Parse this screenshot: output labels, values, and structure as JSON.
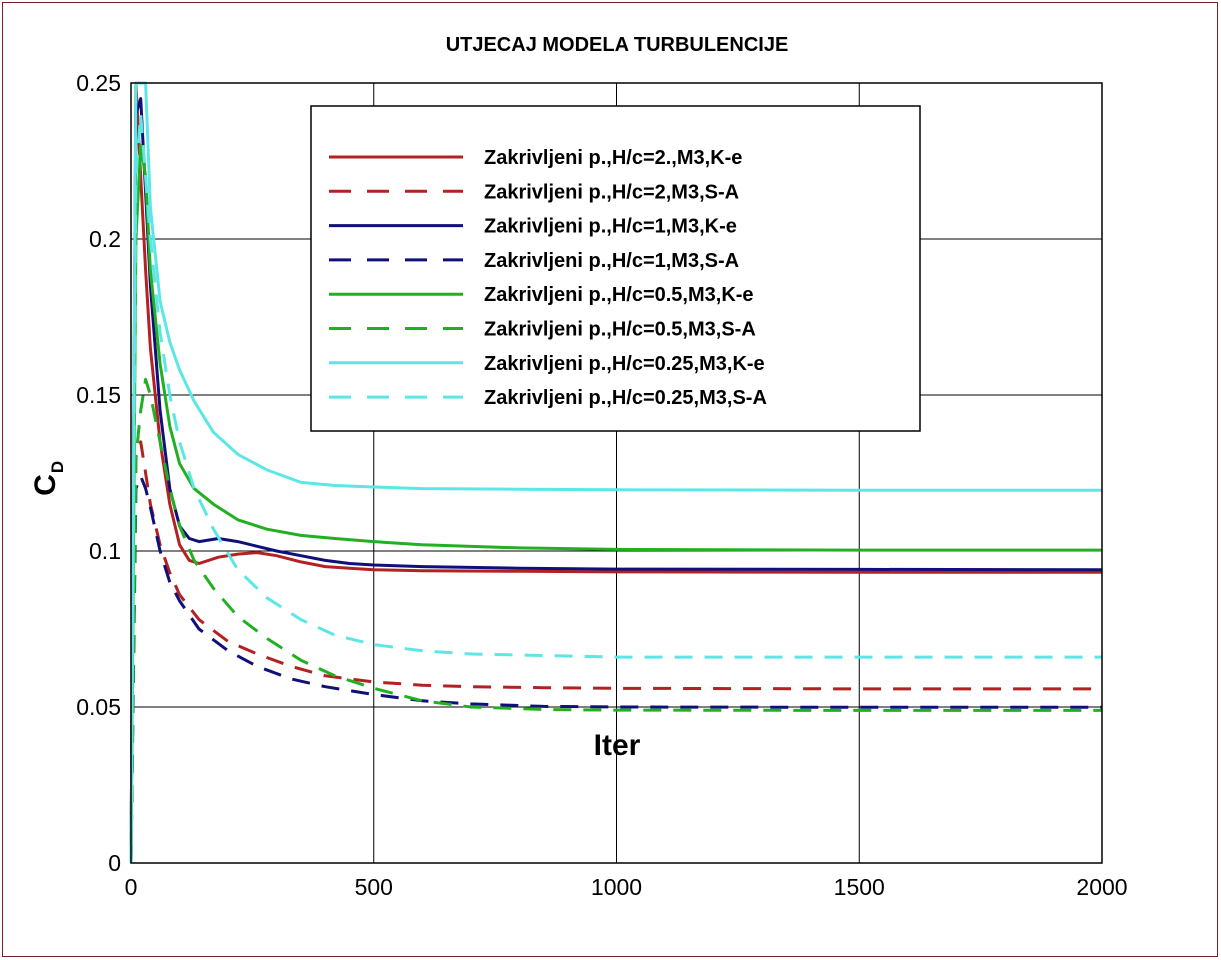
{
  "chart_data": {
    "type": "line",
    "title": "UTJECAJ MODELA TURBULENCIJE",
    "xlabel": "Iter",
    "ylabel": "C",
    "ylabel_sub": "D",
    "xlim": [
      0,
      2000
    ],
    "ylim": [
      0,
      0.25
    ],
    "xticks": [
      0,
      500,
      1000,
      1500,
      2000
    ],
    "xtick_labels": [
      "0",
      "500",
      "1000",
      "1500",
      "2000"
    ],
    "yticks": [
      0,
      0.05,
      0.1,
      0.15,
      0.2,
      0.25
    ],
    "ytick_labels": [
      "0",
      "0.05",
      "0.1",
      "0.15",
      "0.2",
      "0.25"
    ],
    "grid": true,
    "legend_position": "top-center",
    "series": [
      {
        "name": "Zakrivljeni p.,H/c=2.,M3,K-e",
        "color": "#b22222",
        "dash": "solid",
        "x": [
          0,
          10,
          20,
          30,
          40,
          60,
          80,
          100,
          120,
          140,
          180,
          220,
          260,
          300,
          350,
          400,
          450,
          500,
          600,
          800,
          1000,
          1500,
          2000
        ],
        "y": [
          0,
          0.25,
          0.22,
          0.19,
          0.165,
          0.135,
          0.115,
          0.102,
          0.097,
          0.096,
          0.098,
          0.099,
          0.0995,
          0.0985,
          0.0965,
          0.095,
          0.0945,
          0.094,
          0.0937,
          0.0935,
          0.0933,
          0.0932,
          0.0932
        ]
      },
      {
        "name": "Zakrivljeni p.,H/c=2,M3,S-A",
        "color": "#b22222",
        "dash": "dashed",
        "x": [
          0,
          10,
          20,
          30,
          40,
          60,
          80,
          100,
          140,
          200,
          260,
          330,
          400,
          500,
          600,
          700,
          850,
          1000,
          1500,
          2000
        ],
        "y": [
          0,
          0.13,
          0.135,
          0.125,
          0.115,
          0.102,
          0.093,
          0.086,
          0.078,
          0.071,
          0.067,
          0.063,
          0.06,
          0.058,
          0.057,
          0.0565,
          0.0562,
          0.056,
          0.0558,
          0.0558
        ]
      },
      {
        "name": "Zakrivljeni p.,H/c=1,M3,K-e",
        "color": "#10107a",
        "dash": "solid",
        "x": [
          0,
          10,
          20,
          30,
          40,
          60,
          80,
          100,
          120,
          140,
          180,
          220,
          260,
          300,
          350,
          400,
          450,
          500,
          600,
          800,
          1000,
          1500,
          2000
        ],
        "y": [
          0,
          0.24,
          0.245,
          0.215,
          0.185,
          0.145,
          0.12,
          0.108,
          0.104,
          0.103,
          0.104,
          0.103,
          0.1015,
          0.1,
          0.0985,
          0.097,
          0.096,
          0.0955,
          0.095,
          0.0945,
          0.0942,
          0.0941,
          0.094
        ]
      },
      {
        "name": "Zakrivljeni p.,H/c=1,M3,S-A",
        "color": "#10107a",
        "dash": "dashed",
        "x": [
          0,
          10,
          20,
          30,
          40,
          60,
          80,
          100,
          140,
          200,
          260,
          330,
          400,
          500,
          600,
          700,
          850,
          1000,
          1500,
          2000
        ],
        "y": [
          0,
          0.12,
          0.124,
          0.12,
          0.114,
          0.1,
          0.09,
          0.084,
          0.075,
          0.068,
          0.063,
          0.059,
          0.0565,
          0.054,
          0.052,
          0.051,
          0.0502,
          0.05,
          0.0499,
          0.0499
        ]
      },
      {
        "name": "Zakrivljeni p.,H/c=0.5,M3,K-e",
        "color": "#22b022",
        "dash": "solid",
        "x": [
          0,
          10,
          20,
          30,
          40,
          60,
          80,
          100,
          130,
          170,
          220,
          280,
          350,
          420,
          500,
          600,
          800,
          1000,
          1500,
          2000
        ],
        "y": [
          0,
          0.2,
          0.23,
          0.22,
          0.19,
          0.16,
          0.14,
          0.128,
          0.12,
          0.115,
          0.11,
          0.107,
          0.105,
          0.104,
          0.103,
          0.102,
          0.101,
          0.1005,
          0.1003,
          0.1003
        ]
      },
      {
        "name": "Zakrivljeni p.,H/c=0.5,M3,S-A",
        "color": "#22b022",
        "dash": "dashed",
        "x": [
          0,
          10,
          20,
          30,
          40,
          60,
          80,
          100,
          130,
          170,
          220,
          280,
          350,
          420,
          500,
          600,
          700,
          850,
          1000,
          1500,
          2000
        ],
        "y": [
          0,
          0.13,
          0.145,
          0.155,
          0.15,
          0.135,
          0.12,
          0.108,
          0.097,
          0.088,
          0.079,
          0.072,
          0.065,
          0.06,
          0.056,
          0.052,
          0.05,
          0.0492,
          0.049,
          0.0489,
          0.0489
        ]
      },
      {
        "name": "Zakrivljeni p.,H/c=0.25,M3,K-e",
        "color": "#5ce6e6",
        "dash": "solid",
        "x": [
          0,
          10,
          20,
          30,
          40,
          60,
          80,
          100,
          130,
          170,
          220,
          280,
          350,
          420,
          500,
          600,
          800,
          1000,
          1500,
          2000
        ],
        "y": [
          0,
          0.25,
          0.25,
          0.25,
          0.21,
          0.18,
          0.167,
          0.158,
          0.148,
          0.138,
          0.131,
          0.126,
          0.122,
          0.121,
          0.1205,
          0.12,
          0.1198,
          0.1196,
          0.1195,
          0.1195
        ]
      },
      {
        "name": "Zakrivljeni p.,H/c=0.25,M3,S-A",
        "color": "#5ce6e6",
        "dash": "dashed",
        "x": [
          0,
          10,
          20,
          30,
          40,
          60,
          80,
          100,
          130,
          170,
          220,
          280,
          350,
          420,
          500,
          600,
          700,
          850,
          1000,
          1500,
          2000
        ],
        "y": [
          0,
          0.22,
          0.24,
          0.22,
          0.2,
          0.17,
          0.15,
          0.135,
          0.12,
          0.107,
          0.094,
          0.085,
          0.078,
          0.073,
          0.07,
          0.068,
          0.067,
          0.0665,
          0.066,
          0.066,
          0.066
        ]
      }
    ]
  }
}
